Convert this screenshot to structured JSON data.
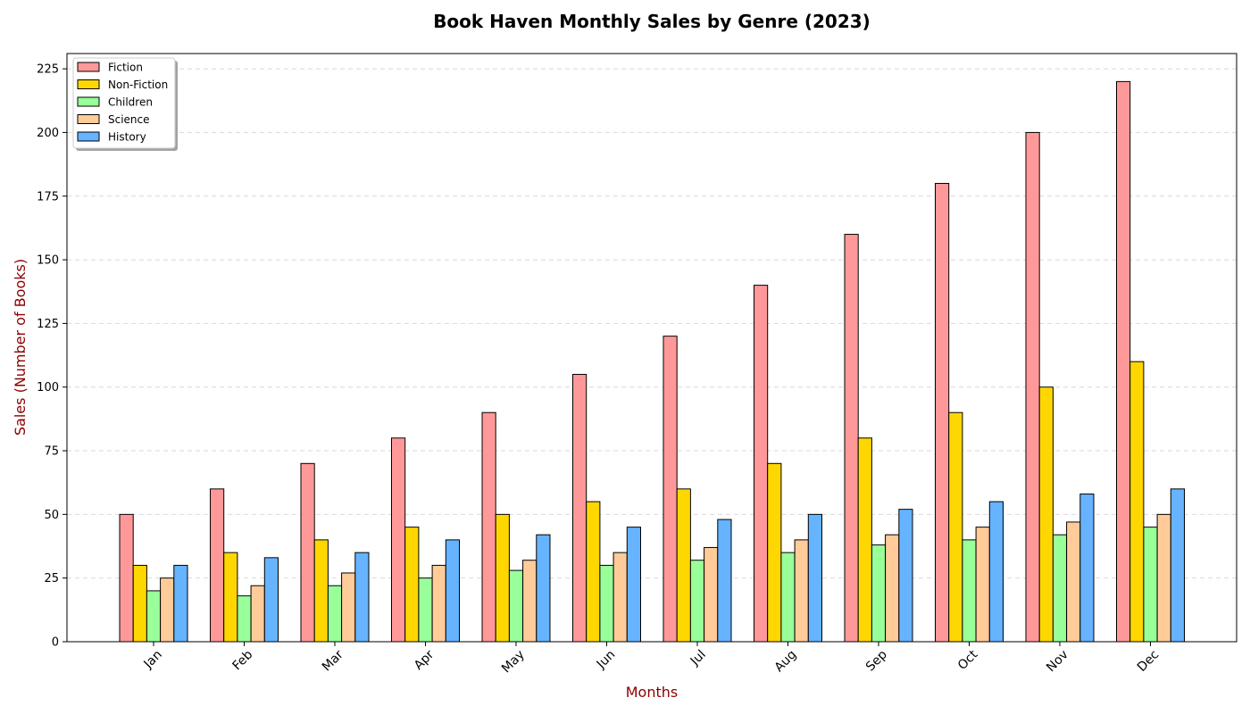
{
  "chart_data": {
    "type": "bar",
    "title": "Book Haven Monthly Sales by Genre (2023)",
    "xlabel": "Months",
    "ylabel": "Sales (Number of Books)",
    "ylim": [
      0,
      231
    ],
    "yticks": [
      0,
      25,
      50,
      75,
      100,
      125,
      150,
      175,
      200,
      225
    ],
    "grid": true,
    "legend_position": "top-left",
    "categories": [
      "Jan",
      "Feb",
      "Mar",
      "Apr",
      "May",
      "Jun",
      "Jul",
      "Aug",
      "Sep",
      "Oct",
      "Nov",
      "Dec"
    ],
    "series": [
      {
        "name": "Fiction",
        "color": "#ff9999",
        "values": [
          50,
          60,
          70,
          80,
          90,
          105,
          120,
          140,
          160,
          180,
          200,
          220
        ]
      },
      {
        "name": "Non-Fiction",
        "color": "#ffd700",
        "values": [
          30,
          35,
          40,
          45,
          50,
          55,
          60,
          70,
          80,
          90,
          100,
          110
        ]
      },
      {
        "name": "Children",
        "color": "#99ff99",
        "values": [
          20,
          18,
          22,
          25,
          28,
          30,
          32,
          35,
          38,
          40,
          42,
          45
        ]
      },
      {
        "name": "Science",
        "color": "#ffcc99",
        "values": [
          25,
          22,
          27,
          30,
          32,
          35,
          37,
          40,
          42,
          45,
          47,
          50
        ]
      },
      {
        "name": "History",
        "color": "#66b3ff",
        "values": [
          30,
          33,
          35,
          40,
          42,
          45,
          48,
          50,
          52,
          55,
          58,
          60
        ]
      }
    ]
  }
}
